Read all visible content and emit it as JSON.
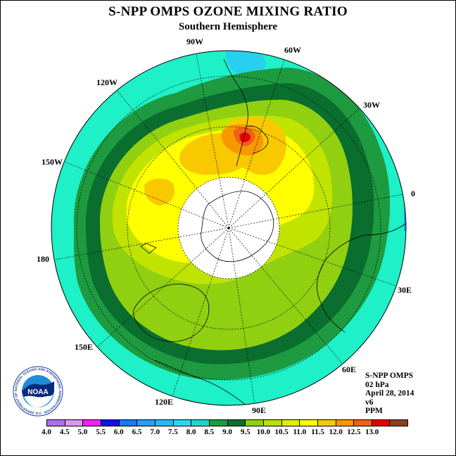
{
  "title": "S-NPP OMPS OZONE MIXING RATIO",
  "subtitle": "Southern Hemisphere",
  "longitude_labels": [
    {
      "text": "90W"
    },
    {
      "text": "60W"
    },
    {
      "text": "120W"
    },
    {
      "text": "30W"
    },
    {
      "text": "150W"
    },
    {
      "text": "0"
    },
    {
      "text": "180"
    },
    {
      "text": "30E"
    },
    {
      "text": "150E"
    },
    {
      "text": "60E"
    },
    {
      "text": "120E"
    },
    {
      "text": "90E"
    }
  ],
  "info": {
    "line1": "S-NPP OMPS",
    "line2": "02 hPa",
    "line3": "April 28, 2014",
    "line4": "v6",
    "line5": "PPM"
  },
  "logo": {
    "text": "NOAA",
    "ring_text": "NATIONAL OCEANIC AND ATMOSPHERIC ADMINISTRATION · U.S. DEPARTMENT OF COMMERCE"
  },
  "colorbar": {
    "ticks": [
      "4.0",
      "4.5",
      "5.0",
      "5.5",
      "6.0",
      "6.5",
      "7.0",
      "7.5",
      "8.0",
      "8.5",
      "9.0",
      "9.5",
      "10.0",
      "10.5",
      "11.0",
      "11.5",
      "12.0",
      "12.5",
      "13.0"
    ],
    "colors": [
      "#b06ee8",
      "#d898f0",
      "#f020f0",
      "#1010e8",
      "#1a78ff",
      "#2a9cff",
      "#28b8f0",
      "#28d8f0",
      "#1ed6c8",
      "#1e9a40",
      "#0a6e2e",
      "#90d010",
      "#b8e000",
      "#e0f000",
      "#ffff00",
      "#f8c800",
      "#f89800",
      "#f06018",
      "#e80000",
      "#884020"
    ]
  },
  "map_colors": {
    "outer": "#1ef0c8",
    "cyan_blob": "#28d0f0",
    "green": "#1e9a40",
    "dark_green": "#0a6e2e",
    "lime": "#90d010",
    "yellow_green": "#c0e400",
    "yellow": "#ffff00",
    "light_orange": "#f8c800",
    "orange": "#f89800",
    "red_orange": "#f06018",
    "red": "#e80000",
    "hole": "#ffffff"
  }
}
